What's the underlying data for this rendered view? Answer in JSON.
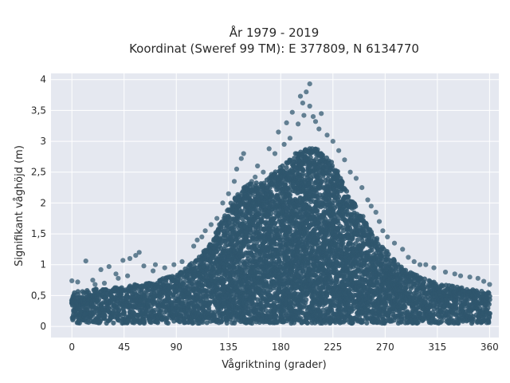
{
  "chart_data": {
    "type": "scatter",
    "title": "År 1979 - 2019",
    "subtitle": "Koordinat (Sweref 99 TM): E 377809, N 6134770",
    "xlabel": "Vågriktning (grader)",
    "ylabel": "Signifikant våghöjd (m)",
    "xlim": [
      -18,
      368
    ],
    "ylim": [
      -0.18,
      4.1
    ],
    "xticks": [
      0,
      45,
      90,
      135,
      180,
      225,
      270,
      315,
      360
    ],
    "xtick_labels": [
      "0",
      "45",
      "90",
      "135",
      "180",
      "225",
      "270",
      "315",
      "360"
    ],
    "yticks": [
      0,
      0.5,
      1,
      1.5,
      2,
      2.5,
      3,
      3.5,
      4
    ],
    "ytick_labels": [
      "0",
      "0,5",
      "1",
      "1,5",
      "2",
      "2,5",
      "3",
      "3,5",
      "4"
    ],
    "grid": true,
    "plot_background": "#e5e8f0",
    "marker_color": "#2f566d",
    "envelope": {
      "x": [
        0,
        15,
        30,
        45,
        60,
        75,
        90,
        105,
        120,
        135,
        150,
        165,
        180,
        195,
        210,
        225,
        240,
        255,
        270,
        285,
        300,
        315,
        330,
        345,
        360
      ],
      "upper": [
        0.55,
        0.6,
        0.62,
        0.65,
        0.7,
        0.75,
        0.85,
        1.05,
        1.35,
        1.95,
        2.3,
        2.35,
        2.6,
        2.85,
        2.9,
        2.65,
        2.1,
        1.65,
        1.25,
        0.95,
        0.8,
        0.7,
        0.65,
        0.6,
        0.55
      ],
      "lower": [
        0.05,
        0.05,
        0.05,
        0.05,
        0.05,
        0.05,
        0.05,
        0.05,
        0.05,
        0.05,
        0.05,
        0.05,
        0.05,
        0.05,
        0.05,
        0.05,
        0.05,
        0.05,
        0.05,
        0.05,
        0.05,
        0.05,
        0.05,
        0.05,
        0.05
      ]
    },
    "outliers": [
      [
        205,
        3.93
      ],
      [
        202,
        3.8
      ],
      [
        197,
        3.73
      ],
      [
        199,
        3.62
      ],
      [
        205,
        3.57
      ],
      [
        190,
        3.47
      ],
      [
        215,
        3.45
      ],
      [
        200,
        3.42
      ],
      [
        208,
        3.4
      ],
      [
        210,
        3.32
      ],
      [
        185,
        3.3
      ],
      [
        195,
        3.28
      ],
      [
        213,
        3.2
      ],
      [
        220,
        3.1
      ],
      [
        178,
        3.15
      ],
      [
        188,
        3.05
      ],
      [
        225,
        3.0
      ],
      [
        183,
        2.95
      ],
      [
        230,
        2.85
      ],
      [
        170,
        2.88
      ],
      [
        175,
        2.8
      ],
      [
        235,
        2.7
      ],
      [
        148,
        2.8
      ],
      [
        146,
        2.72
      ],
      [
        160,
        2.6
      ],
      [
        165,
        2.5
      ],
      [
        240,
        2.5
      ],
      [
        245,
        2.4
      ],
      [
        250,
        2.25
      ],
      [
        255,
        2.05
      ],
      [
        258,
        1.95
      ],
      [
        262,
        1.85
      ],
      [
        265,
        1.7
      ],
      [
        268,
        1.55
      ],
      [
        272,
        1.45
      ],
      [
        278,
        1.35
      ],
      [
        285,
        1.25
      ],
      [
        290,
        1.12
      ],
      [
        295,
        1.05
      ],
      [
        300,
        1.0
      ],
      [
        305,
        1.0
      ],
      [
        312,
        0.95
      ],
      [
        322,
        0.88
      ],
      [
        330,
        0.85
      ],
      [
        335,
        0.82
      ],
      [
        343,
        0.8
      ],
      [
        350,
        0.78
      ],
      [
        355,
        0.73
      ],
      [
        360,
        0.68
      ],
      [
        12,
        1.06
      ],
      [
        25,
        0.92
      ],
      [
        32,
        0.97
      ],
      [
        38,
        0.85
      ],
      [
        44,
        1.07
      ],
      [
        50,
        1.1
      ],
      [
        55,
        1.15
      ],
      [
        58,
        1.2
      ],
      [
        62,
        0.98
      ],
      [
        70,
        0.9
      ],
      [
        72,
        1.0
      ],
      [
        80,
        0.95
      ],
      [
        88,
        1.0
      ],
      [
        95,
        1.05
      ],
      [
        105,
        1.3
      ],
      [
        108,
        1.4
      ],
      [
        112,
        1.45
      ],
      [
        115,
        1.55
      ],
      [
        120,
        1.65
      ],
      [
        125,
        1.75
      ],
      [
        130,
        2.0
      ],
      [
        135,
        2.15
      ],
      [
        140,
        2.35
      ],
      [
        142,
        2.55
      ],
      [
        155,
        2.35
      ],
      [
        158,
        2.42
      ],
      [
        168,
        2.2
      ],
      [
        170,
        2.4
      ],
      [
        0,
        0.74
      ],
      [
        5,
        0.72
      ],
      [
        18,
        0.75
      ],
      [
        20,
        0.68
      ],
      [
        28,
        0.7
      ],
      [
        40,
        0.78
      ],
      [
        48,
        0.82
      ]
    ]
  }
}
